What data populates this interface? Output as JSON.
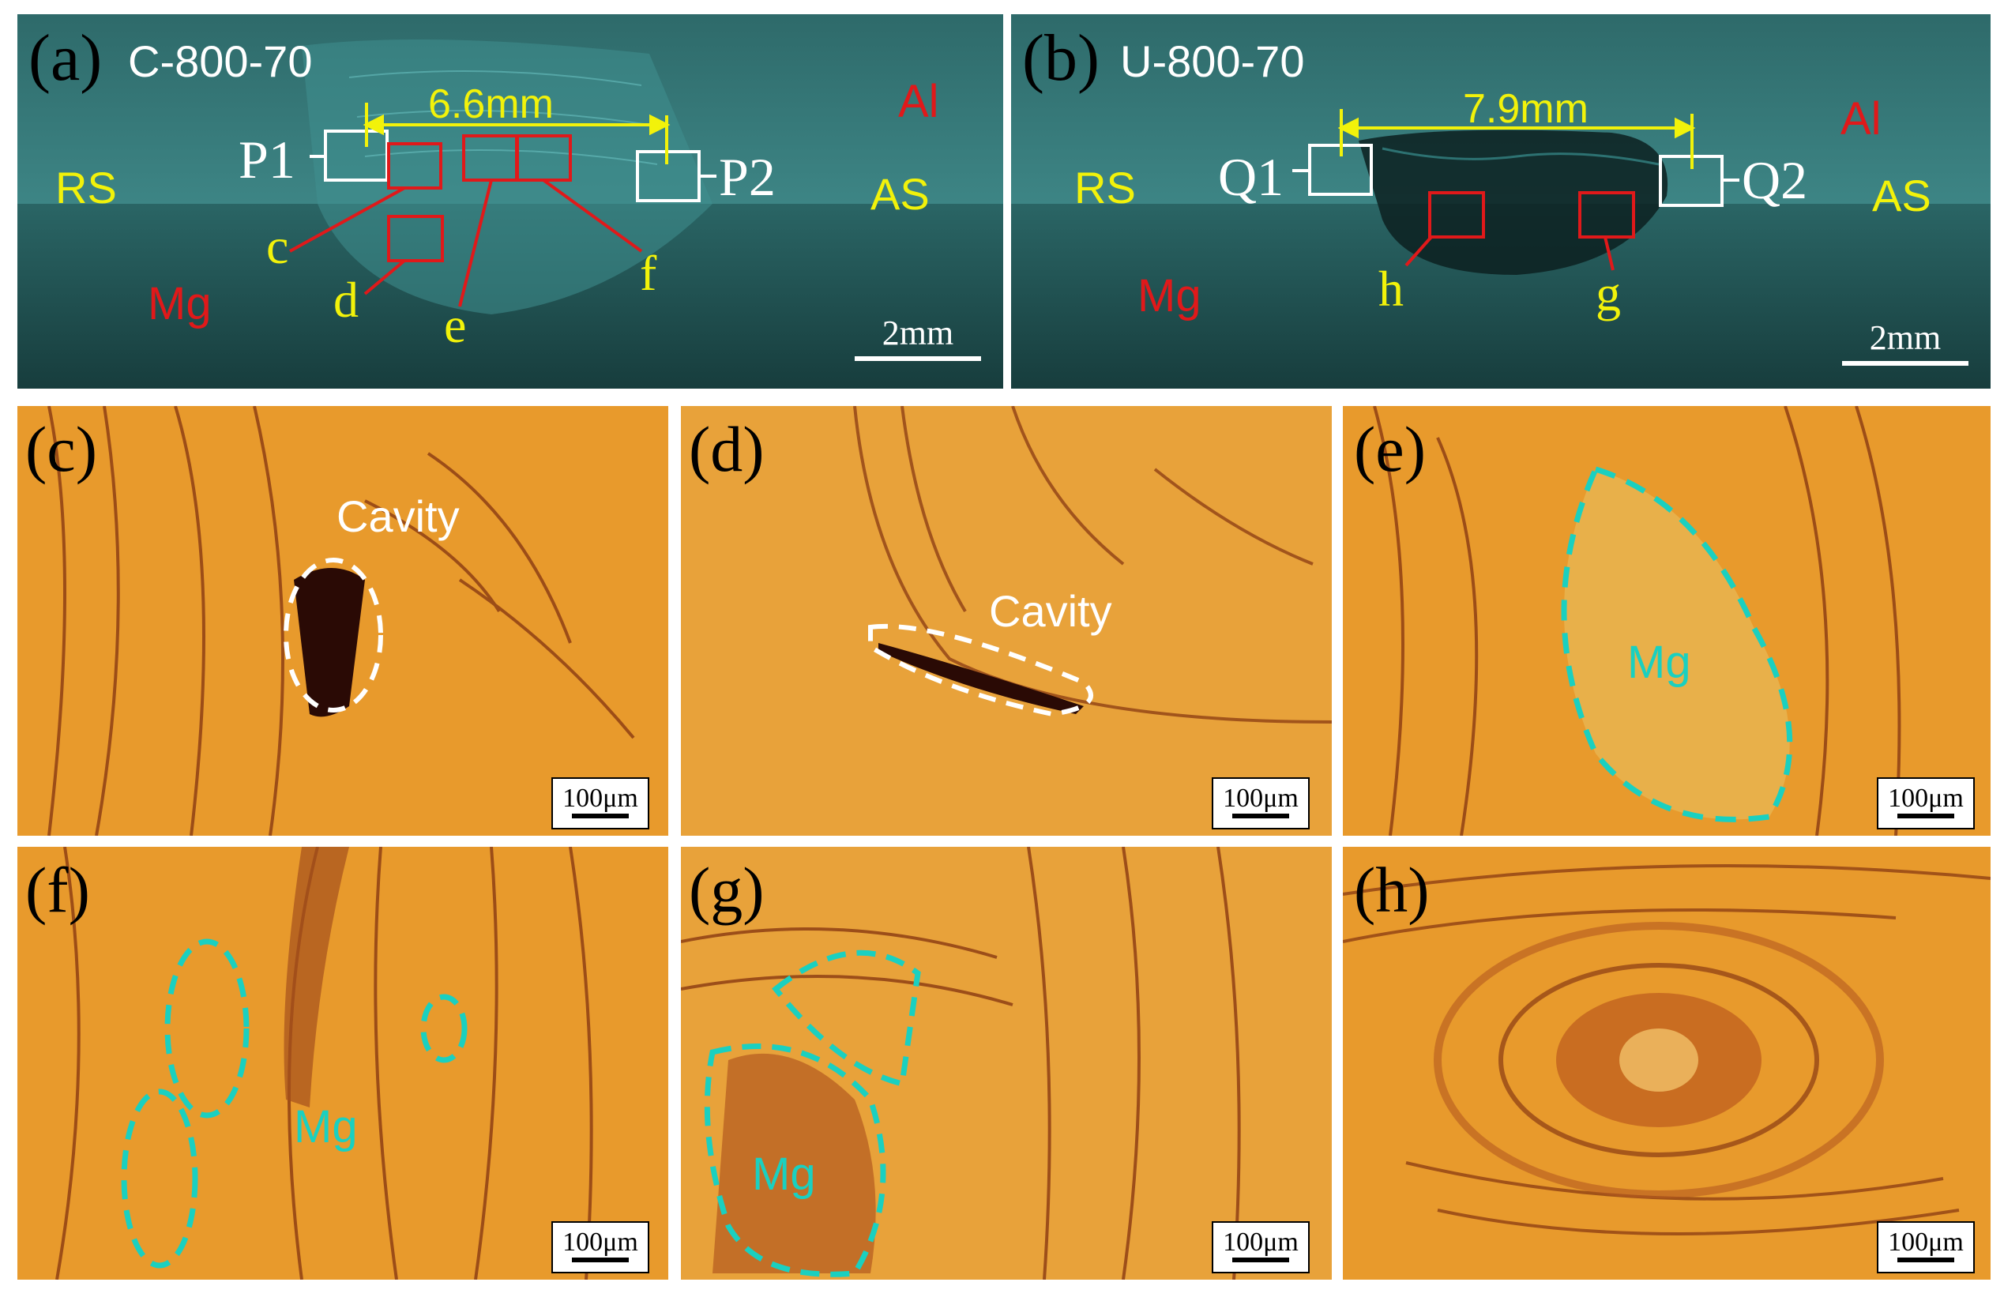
{
  "colors": {
    "macro_bg": "#1f4f4f",
    "macro_tint": "#4fbfbf",
    "micro_bg": "#e89a2c",
    "micro_streak": "#8a3a12",
    "red": "#e0191a",
    "yellow": "#f2f20a",
    "cyan_dash": "#1ad0c0"
  },
  "panel_a": {
    "label": "(a)",
    "sample": "C-800-70",
    "width_label": "6.6mm",
    "points": [
      "P1",
      "P2"
    ],
    "zones": {
      "rs": "RS",
      "as": "AS",
      "top": "Al",
      "bottom": "Mg"
    },
    "callouts": [
      "c",
      "d",
      "e",
      "f"
    ],
    "scale": "2mm"
  },
  "panel_b": {
    "label": "(b)",
    "sample": "U-800-70",
    "width_label": "7.9mm",
    "points": [
      "Q1",
      "Q2"
    ],
    "zones": {
      "rs": "RS",
      "as": "AS",
      "top": "Al",
      "bottom": "Mg"
    },
    "callouts": [
      "h",
      "g"
    ],
    "scale": "2mm"
  },
  "micro": {
    "c": {
      "label": "(c)",
      "note": "Cavity",
      "scale": "100μm"
    },
    "d": {
      "label": "(d)",
      "note": "Cavity",
      "scale": "100μm"
    },
    "e": {
      "label": "(e)",
      "note": "Mg",
      "scale": "100μm"
    },
    "f": {
      "label": "(f)",
      "note": "Mg",
      "scale": "100μm"
    },
    "g": {
      "label": "(g)",
      "note": "Mg",
      "scale": "100μm"
    },
    "h": {
      "label": "(h)",
      "scale": "100μm"
    }
  }
}
